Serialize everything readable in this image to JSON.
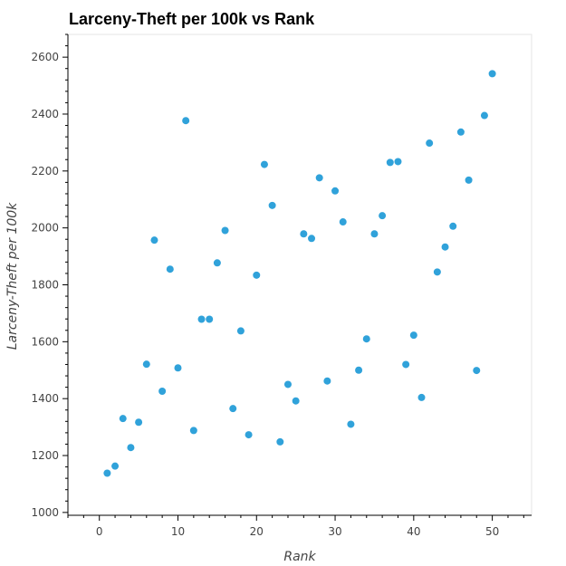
{
  "chart_data": {
    "type": "scatter",
    "title": "Larceny-Theft per 100k vs Rank",
    "xlabel": "Rank",
    "ylabel": "Larceny-Theft per 100k",
    "xlim": [
      -4,
      55
    ],
    "ylim": [
      990,
      2680
    ],
    "xticks": [
      0,
      10,
      20,
      30,
      40,
      50
    ],
    "yticks": [
      1000,
      1200,
      1400,
      1600,
      1800,
      2000,
      2200,
      2400,
      2600
    ],
    "grid": false,
    "marker_color": "#30a2da",
    "points": [
      {
        "x": 1,
        "y": 1138
      },
      {
        "x": 2,
        "y": 1163
      },
      {
        "x": 3,
        "y": 1330
      },
      {
        "x": 4,
        "y": 1228
      },
      {
        "x": 5,
        "y": 1317
      },
      {
        "x": 6,
        "y": 1521
      },
      {
        "x": 7,
        "y": 1957
      },
      {
        "x": 8,
        "y": 1426
      },
      {
        "x": 9,
        "y": 1855
      },
      {
        "x": 10,
        "y": 1508
      },
      {
        "x": 11,
        "y": 2377
      },
      {
        "x": 12,
        "y": 1288
      },
      {
        "x": 13,
        "y": 1679
      },
      {
        "x": 14,
        "y": 1679
      },
      {
        "x": 15,
        "y": 1877
      },
      {
        "x": 16,
        "y": 1991
      },
      {
        "x": 17,
        "y": 1365
      },
      {
        "x": 18,
        "y": 1638
      },
      {
        "x": 19,
        "y": 1273
      },
      {
        "x": 20,
        "y": 1834
      },
      {
        "x": 21,
        "y": 2223
      },
      {
        "x": 22,
        "y": 2079
      },
      {
        "x": 23,
        "y": 1248
      },
      {
        "x": 24,
        "y": 1450
      },
      {
        "x": 25,
        "y": 1392
      },
      {
        "x": 26,
        "y": 1979
      },
      {
        "x": 27,
        "y": 1963
      },
      {
        "x": 28,
        "y": 2176
      },
      {
        "x": 29,
        "y": 1462
      },
      {
        "x": 30,
        "y": 2130
      },
      {
        "x": 31,
        "y": 2021
      },
      {
        "x": 32,
        "y": 1310
      },
      {
        "x": 33,
        "y": 1500
      },
      {
        "x": 34,
        "y": 1610
      },
      {
        "x": 35,
        "y": 1979
      },
      {
        "x": 36,
        "y": 2043
      },
      {
        "x": 37,
        "y": 2230
      },
      {
        "x": 38,
        "y": 2233
      },
      {
        "x": 39,
        "y": 1520
      },
      {
        "x": 40,
        "y": 1623
      },
      {
        "x": 41,
        "y": 1404
      },
      {
        "x": 42,
        "y": 2298
      },
      {
        "x": 43,
        "y": 1845
      },
      {
        "x": 44,
        "y": 1933
      },
      {
        "x": 45,
        "y": 2006
      },
      {
        "x": 46,
        "y": 2337
      },
      {
        "x": 47,
        "y": 2168
      },
      {
        "x": 48,
        "y": 1499
      },
      {
        "x": 49,
        "y": 2395
      },
      {
        "x": 50,
        "y": 2542
      }
    ]
  }
}
